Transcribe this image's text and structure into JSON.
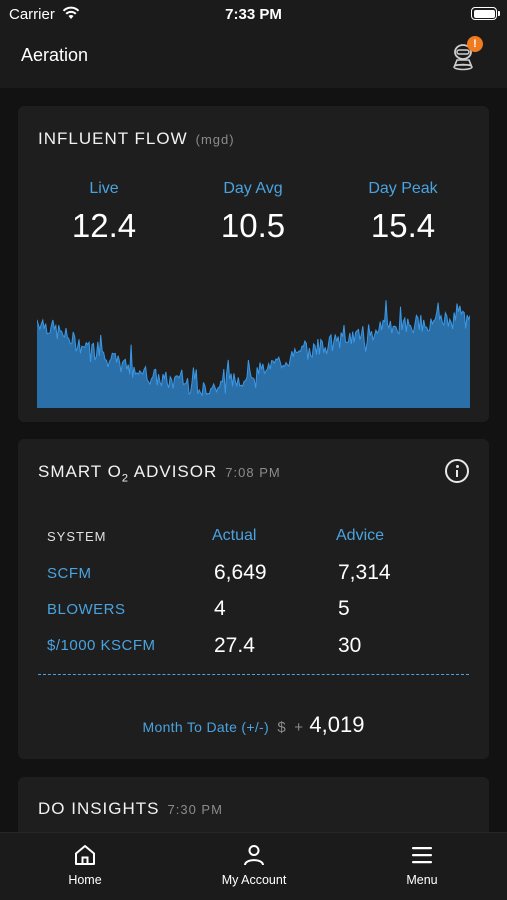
{
  "status_bar": {
    "carrier": "Carrier",
    "time": "7:33 PM"
  },
  "header": {
    "title": "Aeration",
    "alert_badge": "!"
  },
  "influent_flow": {
    "title": "INFLUENT FLOW",
    "unit": "(mgd)",
    "metrics": [
      {
        "label": "Live",
        "value": "12.4"
      },
      {
        "label": "Day Avg",
        "value": "10.5"
      },
      {
        "label": "Day Peak",
        "value": "15.4"
      }
    ],
    "chart_color": "#2f86cf"
  },
  "smart_advisor": {
    "title_prefix": "SMART O",
    "title_sub": "2",
    "title_suffix": " ADVISOR",
    "time": "7:08 PM",
    "system_header": "SYSTEM",
    "actual_header": "Actual",
    "advice_header": "Advice",
    "rows": [
      {
        "label": "SCFM",
        "actual": "6,649",
        "advice": "7,314"
      },
      {
        "label": "BLOWERS",
        "actual": "4",
        "advice": "5"
      },
      {
        "label": "$/1000 KSCFM",
        "actual": "27.4",
        "advice": "30"
      }
    ],
    "mtd_label": "Month To Date (+/-)",
    "mtd_currency": "$",
    "mtd_sign": "+",
    "mtd_value": "4,019"
  },
  "do_insights": {
    "title": "DO INSIGHTS",
    "time": "7:30 PM"
  },
  "tabs": [
    {
      "label": "Home",
      "icon": "home-icon"
    },
    {
      "label": "My Account",
      "icon": "person-icon"
    },
    {
      "label": "Menu",
      "icon": "menu-icon"
    }
  ],
  "accent_color": "#4aa3df",
  "badge_color": "#f07a1e"
}
